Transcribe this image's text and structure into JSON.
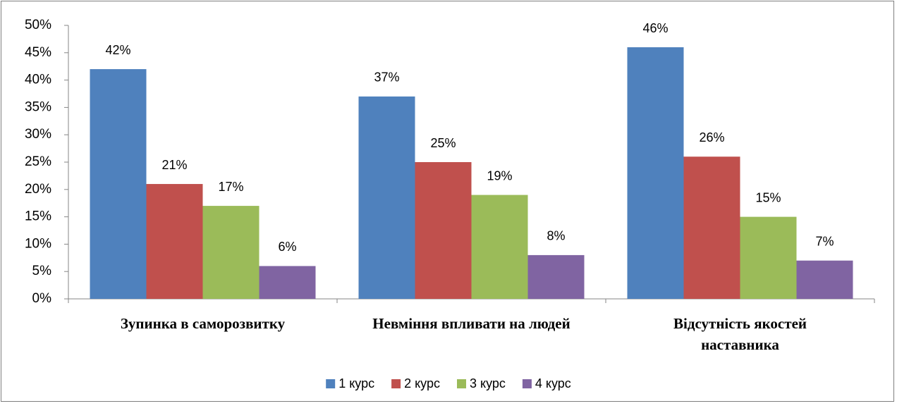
{
  "chart_data": {
    "type": "bar",
    "categories": [
      "Зупинка в саморозвитку",
      "Невміння впливати на людей",
      "Відсутність якостей наставника"
    ],
    "series": [
      {
        "name": "1 курс",
        "color": "#4f81bd",
        "values": [
          42,
          37,
          46
        ],
        "value_labels": [
          "42%",
          "37%",
          "46%"
        ]
      },
      {
        "name": "2 курс",
        "color": "#c0504d",
        "values": [
          21,
          25,
          26
        ],
        "value_labels": [
          "21%",
          "25%",
          "26%"
        ]
      },
      {
        "name": "3 курс",
        "color": "#9bbb59",
        "values": [
          17,
          19,
          15
        ],
        "value_labels": [
          "17%",
          "19%",
          "15%"
        ]
      },
      {
        "name": "4 курс",
        "color": "#8064a2",
        "values": [
          6,
          8,
          7
        ],
        "value_labels": [
          "6%",
          "8%",
          "7%"
        ]
      }
    ],
    "ylim": [
      0,
      50
    ],
    "yticks": [
      {
        "value": 0,
        "label": "0%"
      },
      {
        "value": 5,
        "label": "5%"
      },
      {
        "value": 10,
        "label": "10%"
      },
      {
        "value": 15,
        "label": "15%"
      },
      {
        "value": 20,
        "label": "20%"
      },
      {
        "value": 25,
        "label": "25%"
      },
      {
        "value": 30,
        "label": "30%"
      },
      {
        "value": 35,
        "label": "35%"
      },
      {
        "value": 40,
        "label": "40%"
      },
      {
        "value": 45,
        "label": "45%"
      },
      {
        "value": 50,
        "label": "50%"
      }
    ],
    "legend": "bottom"
  }
}
